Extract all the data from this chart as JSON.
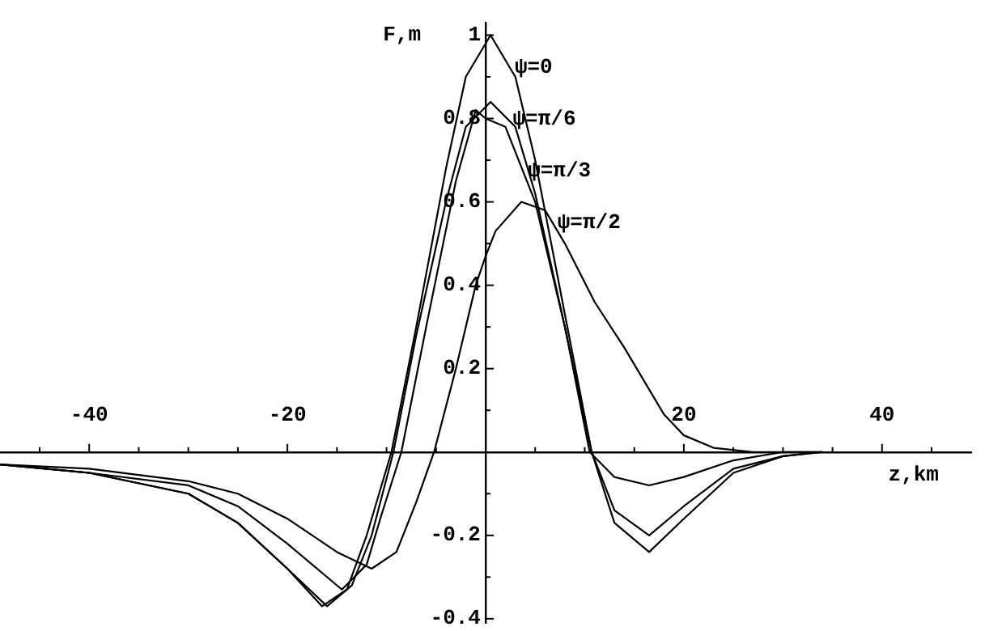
{
  "chart_data": {
    "type": "line",
    "xlabel": "z,km",
    "ylabel": "F,m",
    "xlim": [
      -49,
      49
    ],
    "ylim": [
      -0.41,
      1.03
    ],
    "xticks": [
      {
        "value": -45,
        "label": null
      },
      -40,
      {
        "value": -35,
        "label": null
      },
      {
        "value": -30,
        "label": null
      },
      {
        "value": -25,
        "label": null
      },
      -20,
      {
        "value": -15,
        "label": null
      },
      {
        "value": -10,
        "label": null
      },
      {
        "value": -5,
        "label": null
      },
      {
        "value": 5,
        "label": null
      },
      {
        "value": 10,
        "label": null
      },
      {
        "value": 15,
        "label": null
      },
      20,
      {
        "value": 25,
        "label": null
      },
      {
        "value": 30,
        "label": null
      },
      {
        "value": 35,
        "label": null
      },
      40,
      {
        "value": 45,
        "label": null
      }
    ],
    "yticks": [
      -0.4,
      {
        "value": -0.3,
        "label": null
      },
      -0.2,
      {
        "value": -0.1,
        "label": null
      },
      {
        "value": 0.1,
        "label": null
      },
      0.2,
      {
        "value": 0.3,
        "label": null
      },
      0.4,
      {
        "value": 0.5,
        "label": null
      },
      0.6,
      {
        "value": 0.7,
        "label": null
      },
      0.8,
      {
        "value": 0.9,
        "label": null
      },
      1
    ],
    "grid": false,
    "legend": false,
    "marker": "none",
    "line_style": "solid",
    "series": [
      {
        "name": "ψ=0",
        "color": "#000000",
        "x": [
          -49,
          -40,
          -30,
          -25,
          -20,
          -16.5,
          -14,
          -12,
          -9.5,
          -7,
          -4,
          -2,
          0.5,
          3,
          5,
          8,
          10.7,
          13,
          16.5,
          20,
          25,
          30,
          34
        ],
        "values": [
          -0.03,
          -0.05,
          -0.1,
          -0.17,
          -0.28,
          -0.37,
          -0.33,
          -0.2,
          0,
          0.3,
          0.68,
          0.9,
          1.0,
          0.9,
          0.7,
          0.33,
          0,
          -0.17,
          -0.24,
          -0.16,
          -0.05,
          -0.01,
          0
        ]
      },
      {
        "name": "ψ=π/6",
        "color": "#000000",
        "x": [
          -49,
          -40,
          -30,
          -25,
          -20,
          -16,
          -13.5,
          -11.5,
          -9.3,
          -7,
          -4,
          -2,
          0.5,
          3,
          5,
          8,
          10.7,
          13,
          16.5,
          20,
          25,
          30,
          34
        ],
        "values": [
          -0.03,
          -0.05,
          -0.1,
          -0.17,
          -0.28,
          -0.37,
          -0.32,
          -0.2,
          0,
          0.28,
          0.6,
          0.78,
          0.84,
          0.78,
          0.62,
          0.3,
          0,
          -0.14,
          -0.2,
          -0.13,
          -0.04,
          -0.01,
          0
        ]
      },
      {
        "name": "ψ=π/3",
        "color": "#000000",
        "x": [
          -49,
          -40,
          -30,
          -25,
          -20,
          -14.5,
          -12,
          -10.5,
          -8.5,
          -6,
          -3,
          -1,
          0,
          2,
          5,
          8,
          10.5,
          13,
          16.5,
          20,
          25,
          30,
          34
        ],
        "values": [
          -0.03,
          -0.05,
          -0.08,
          -0.13,
          -0.22,
          -0.33,
          -0.27,
          -0.15,
          0,
          0.3,
          0.65,
          0.82,
          0.8,
          0.78,
          0.6,
          0.3,
          0,
          -0.06,
          -0.08,
          -0.06,
          -0.02,
          0,
          0
        ]
      },
      {
        "name": "ψ=π/2",
        "color": "#000000",
        "x": [
          -49,
          -40,
          -30,
          -25,
          -20,
          -15,
          -11.5,
          -9,
          -7,
          -5.2,
          -3,
          -1,
          0,
          1,
          3.6,
          6,
          8,
          11,
          14,
          16,
          18,
          20,
          23,
          27,
          34
        ],
        "values": [
          -0.03,
          -0.04,
          -0.07,
          -0.1,
          -0.16,
          -0.24,
          -0.28,
          -0.24,
          -0.12,
          0,
          0.2,
          0.4,
          0.47,
          0.53,
          0.6,
          0.58,
          0.5,
          0.36,
          0.25,
          0.17,
          0.09,
          0.04,
          0.01,
          0,
          0
        ]
      }
    ]
  }
}
